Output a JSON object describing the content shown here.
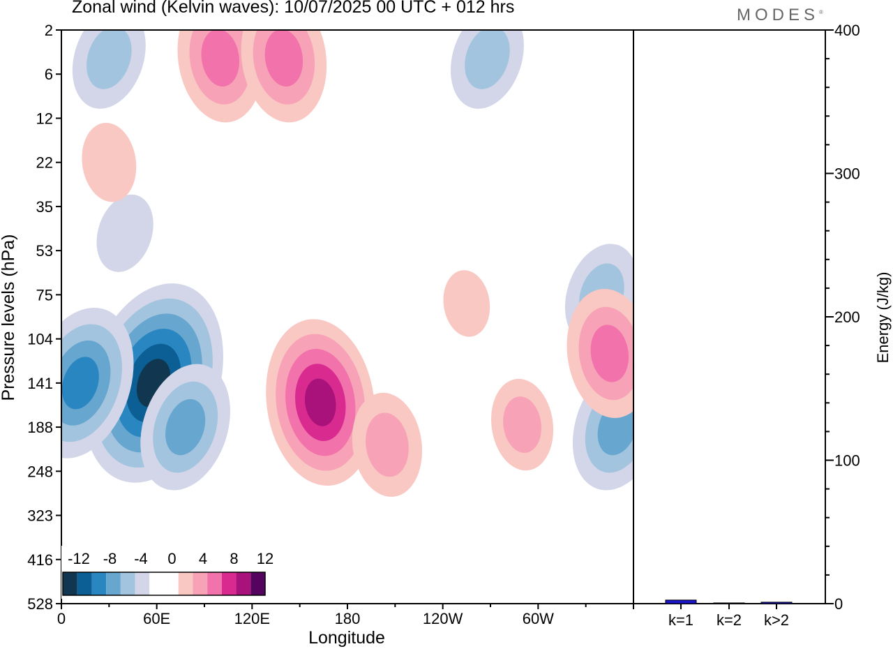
{
  "header": {
    "title": "Zonal wind (Kelvin waves):  10/07/2025  00 UTC  + 012 hrs",
    "logo": "MODES"
  },
  "colors": {
    "neg": [
      "#10374f",
      "#0c5f94",
      "#2a86c0",
      "#66a6cf",
      "#a3c4df",
      "#d2d6e8"
    ],
    "zero": "#ffffff",
    "pos": [
      "#f9c8c3",
      "#f8a2b7",
      "#f272ab",
      "#d92a8f",
      "#a8127a",
      "#54045f"
    ],
    "bar": "#1a16c8"
  },
  "chart_data": [
    {
      "type": "heatmap",
      "title": "Zonal wind (Kelvin waves):  10/07/2025  00 UTC  + 012 hrs",
      "xlabel": "Longitude",
      "ylabel": "Pressure levels (hPa)",
      "x_ticks": [
        "0",
        "60E",
        "120E",
        "180",
        "120W",
        "60W"
      ],
      "y_ticks": [
        "2",
        "6",
        "12",
        "22",
        "35",
        "53",
        "75",
        "104",
        "141",
        "188",
        "248",
        "323",
        "416",
        "528"
      ],
      "legend_labels": [
        "-12",
        "-8",
        "-4",
        "0",
        "4",
        "8",
        "12"
      ],
      "contour_levels": [
        -12,
        -10,
        -8,
        -6,
        -4,
        -2,
        2,
        4,
        6,
        8,
        10,
        12
      ],
      "features": [
        {
          "lon": 58,
          "level": 141,
          "value": -13
        },
        {
          "lon": 12,
          "level": 141,
          "value": -9
        },
        {
          "lon": 78,
          "level": 188,
          "value": -7
        },
        {
          "lon": 30,
          "level": 4,
          "value": -5
        },
        {
          "lon": 268,
          "level": 4,
          "value": -5
        },
        {
          "lon": 350,
          "level": 188,
          "value": -7
        },
        {
          "lon": 340,
          "level": 75,
          "value": -5
        },
        {
          "lon": 40,
          "level": 45,
          "value": -3
        },
        {
          "lon": 163,
          "level": 160,
          "value": 10
        },
        {
          "lon": 205,
          "level": 210,
          "value": 5
        },
        {
          "lon": 100,
          "level": 4,
          "value": 7
        },
        {
          "lon": 140,
          "level": 4,
          "value": 7
        },
        {
          "lon": 345,
          "level": 115,
          "value": 7
        },
        {
          "lon": 290,
          "level": 185,
          "value": 4
        },
        {
          "lon": 30,
          "level": 22,
          "value": 3
        },
        {
          "lon": 255,
          "level": 80,
          "value": 2
        }
      ]
    },
    {
      "type": "bar",
      "categories": [
        "k=1",
        "k=2",
        "k>2"
      ],
      "values": [
        2.5,
        0.5,
        1
      ],
      "ylabel": "Energy (J/kg)",
      "y_ticks": [
        "0",
        "100",
        "200",
        "300",
        "400"
      ],
      "ylim": [
        0,
        400
      ]
    }
  ]
}
